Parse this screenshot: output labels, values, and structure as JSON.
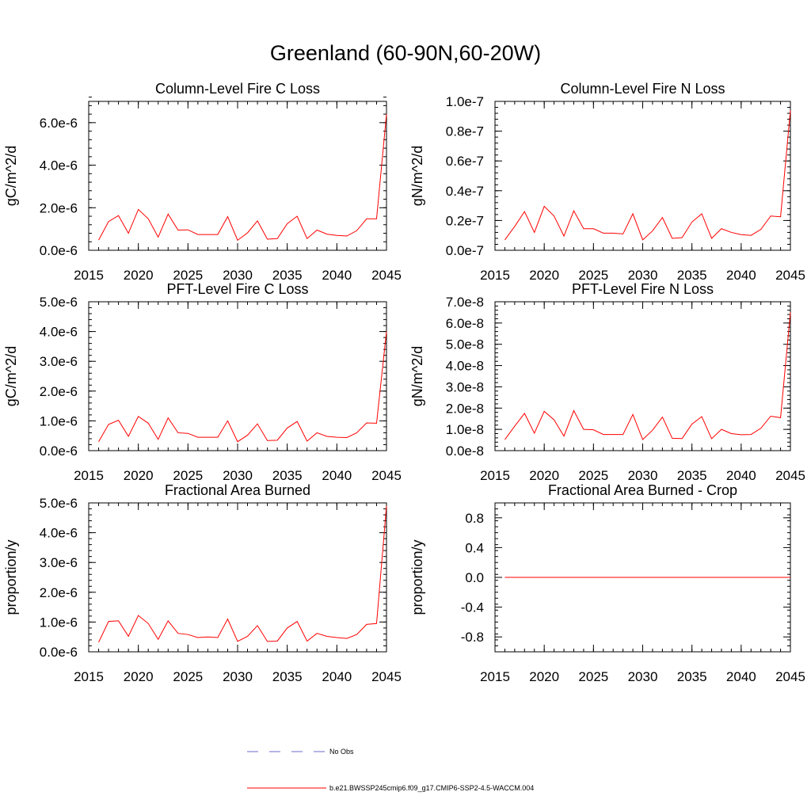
{
  "figure": {
    "title": "Greenland (60-90N,60-20W)"
  },
  "legend": {
    "items": [
      {
        "label": "No Obs",
        "style": "dashed",
        "color": "#6b6bc8"
      },
      {
        "label": "b.e21.BWSSP245cmip6.f09_g17.CMIP6-SSP2-4.5-WACCM.004",
        "style": "solid",
        "color": "#ff0000"
      }
    ]
  },
  "chart_data": [
    {
      "type": "line",
      "title": "Column-Level Fire C Loss",
      "ylabel": "gC/m^2/d",
      "xlim": [
        2015,
        2045
      ],
      "ylim": [
        0,
        7e-06
      ],
      "xticks": [
        2015,
        2020,
        2025,
        2030,
        2035,
        2040,
        2045
      ],
      "xtick_labels": [
        "2015",
        "2020",
        "2025",
        "2030",
        "2035",
        "2040",
        "2045"
      ],
      "yticks": [
        0,
        2e-06,
        4e-06,
        6e-06
      ],
      "ytick_labels": [
        "0.0e-6",
        "2.0e-6",
        "4.0e-6",
        "6.0e-6"
      ],
      "yminor_step": 4e-07,
      "x": [
        2016,
        2017,
        2018,
        2019,
        2020,
        2021,
        2022,
        2023,
        2024,
        2025,
        2026,
        2027,
        2028,
        2029,
        2030,
        2031,
        2032,
        2033,
        2034,
        2035,
        2036,
        2037,
        2038,
        2039,
        2040,
        2041,
        2042,
        2043,
        2044,
        2045
      ],
      "series": [
        {
          "values": [
            4.8e-07,
            1.35e-06,
            1.63e-06,
            8e-07,
            1.92e-06,
            1.48e-06,
            6.2e-07,
            1.7e-06,
            9.5e-07,
            9.6e-07,
            7.4e-07,
            7.4e-07,
            7.4e-07,
            1.58e-06,
            4.7e-07,
            8.2e-07,
            1.38e-06,
            5.2e-07,
            5.5e-07,
            1.25e-06,
            1.6e-06,
            5.5e-07,
            9.5e-07,
            7.6e-07,
            7e-07,
            6.7e-07,
            9.2e-07,
            1.48e-06,
            1.48e-06,
            6.4e-06
          ],
          "color": "#ff0000"
        }
      ]
    },
    {
      "type": "line",
      "title": "Column-Level Fire N Loss",
      "ylabel": "gN/m^2/d",
      "xlim": [
        2015,
        2045
      ],
      "ylim": [
        0,
        1e-07
      ],
      "xticks": [
        2015,
        2020,
        2025,
        2030,
        2035,
        2040,
        2045
      ],
      "xtick_labels": [
        "2015",
        "2020",
        "2025",
        "2030",
        "2035",
        "2040",
        "2045"
      ],
      "yticks": [
        0,
        2e-08,
        4e-08,
        6e-08,
        8e-08,
        1e-07
      ],
      "ytick_labels": [
        "0.0e-7",
        "0.2e-7",
        "0.4e-7",
        "0.6e-7",
        "0.8e-7",
        "1.0e-7"
      ],
      "yminor_step": 4e-09,
      "x": [
        2016,
        2017,
        2018,
        2019,
        2020,
        2021,
        2022,
        2023,
        2024,
        2025,
        2026,
        2027,
        2028,
        2029,
        2030,
        2031,
        2032,
        2033,
        2034,
        2035,
        2036,
        2037,
        2038,
        2039,
        2040,
        2041,
        2042,
        2043,
        2044,
        2045
      ],
      "series": [
        {
          "values": [
            7e-09,
            1.6e-08,
            2.6e-08,
            1.2e-08,
            2.95e-08,
            2.3e-08,
            9.5e-09,
            2.65e-08,
            1.45e-08,
            1.45e-08,
            1.15e-08,
            1.15e-08,
            1.1e-08,
            2.45e-08,
            7e-09,
            1.3e-08,
            2.2e-08,
            8e-09,
            8.5e-09,
            1.9e-08,
            2.45e-08,
            8e-09,
            1.45e-08,
            1.2e-08,
            1.05e-08,
            1e-08,
            1.4e-08,
            2.3e-08,
            2.25e-08,
            9.4e-08
          ],
          "color": "#ff0000"
        }
      ]
    },
    {
      "type": "line",
      "title": "PFT-Level Fire C Loss",
      "ylabel": "gC/m^2/d",
      "xlim": [
        2015,
        2045
      ],
      "ylim": [
        0,
        5e-06
      ],
      "xticks": [
        2015,
        2020,
        2025,
        2030,
        2035,
        2040,
        2045
      ],
      "xtick_labels": [
        "2015",
        "2020",
        "2025",
        "2030",
        "2035",
        "2040",
        "2045"
      ],
      "yticks": [
        0,
        1e-06,
        2e-06,
        3e-06,
        4e-06,
        5e-06
      ],
      "ytick_labels": [
        "0.0e-6",
        "1.0e-6",
        "2.0e-6",
        "3.0e-6",
        "4.0e-6",
        "5.0e-6"
      ],
      "yminor_step": 2e-07,
      "x": [
        2016,
        2017,
        2018,
        2019,
        2020,
        2021,
        2022,
        2023,
        2024,
        2025,
        2026,
        2027,
        2028,
        2029,
        2030,
        2031,
        2032,
        2033,
        2034,
        2035,
        2036,
        2037,
        2038,
        2039,
        2040,
        2041,
        2042,
        2043,
        2044,
        2045
      ],
      "series": [
        {
          "values": [
            3e-07,
            8.8e-07,
            1.02e-06,
            4.8e-07,
            1.15e-06,
            9.2e-07,
            3.8e-07,
            1.1e-06,
            6e-07,
            5.8e-07,
            4.5e-07,
            4.5e-07,
            4.5e-07,
            1e-06,
            3e-07,
            5.2e-07,
            9e-07,
            3.4e-07,
            3.5e-07,
            7.6e-07,
            9.8e-07,
            3.2e-07,
            6e-07,
            4.8e-07,
            4.5e-07,
            4.4e-07,
            6e-07,
            9.3e-07,
            9.2e-07,
            4e-06
          ],
          "color": "#ff0000"
        }
      ]
    },
    {
      "type": "line",
      "title": "PFT-Level Fire N Loss",
      "ylabel": "gN/m^2/d",
      "xlim": [
        2015,
        2045
      ],
      "ylim": [
        0,
        7e-08
      ],
      "xticks": [
        2015,
        2020,
        2025,
        2030,
        2035,
        2040,
        2045
      ],
      "xtick_labels": [
        "2015",
        "2020",
        "2025",
        "2030",
        "2035",
        "2040",
        "2045"
      ],
      "yticks": [
        0,
        1e-08,
        2e-08,
        3e-08,
        4e-08,
        5e-08,
        6e-08,
        7e-08
      ],
      "ytick_labels": [
        "0.0e-8",
        "1.0e-8",
        "2.0e-8",
        "3.0e-8",
        "4.0e-8",
        "5.0e-8",
        "6.0e-8",
        "7.0e-8"
      ],
      "yminor_step": 2e-09,
      "x": [
        2016,
        2017,
        2018,
        2019,
        2020,
        2021,
        2022,
        2023,
        2024,
        2025,
        2026,
        2027,
        2028,
        2029,
        2030,
        2031,
        2032,
        2033,
        2034,
        2035,
        2036,
        2037,
        2038,
        2039,
        2040,
        2041,
        2042,
        2043,
        2044,
        2045
      ],
      "series": [
        {
          "values": [
            5.2e-09,
            1.15e-08,
            1.75e-08,
            8.2e-09,
            1.85e-08,
            1.45e-08,
            6.8e-09,
            1.88e-08,
            1e-08,
            9.8e-09,
            7.6e-09,
            7.6e-09,
            7.6e-09,
            1.7e-08,
            5.2e-09,
            9.6e-09,
            1.58e-08,
            5.8e-09,
            5.7e-09,
            1.25e-08,
            1.6e-08,
            5.6e-09,
            1e-08,
            8e-09,
            7.5e-09,
            7.6e-09,
            1.05e-08,
            1.62e-08,
            1.55e-08,
            6.5e-08
          ],
          "color": "#ff0000"
        }
      ]
    },
    {
      "type": "line",
      "title": "Fractional Area Burned",
      "ylabel": "proportion/y",
      "xlim": [
        2015,
        2045
      ],
      "ylim": [
        0,
        5e-06
      ],
      "xticks": [
        2015,
        2020,
        2025,
        2030,
        2035,
        2040,
        2045
      ],
      "xtick_labels": [
        "2015",
        "2020",
        "2025",
        "2030",
        "2035",
        "2040",
        "2045"
      ],
      "yticks": [
        0,
        1e-06,
        2e-06,
        3e-06,
        4e-06,
        5e-06
      ],
      "ytick_labels": [
        "0.0e-6",
        "1.0e-6",
        "2.0e-6",
        "3.0e-6",
        "4.0e-6",
        "5.0e-6"
      ],
      "yminor_step": 2e-07,
      "x": [
        2016,
        2017,
        2018,
        2019,
        2020,
        2021,
        2022,
        2023,
        2024,
        2025,
        2026,
        2027,
        2028,
        2029,
        2030,
        2031,
        2032,
        2033,
        2034,
        2035,
        2036,
        2037,
        2038,
        2039,
        2040,
        2041,
        2042,
        2043,
        2044,
        2045
      ],
      "series": [
        {
          "values": [
            3.2e-07,
            1.02e-06,
            1.04e-06,
            5.2e-07,
            1.22e-06,
            9.5e-07,
            4.2e-07,
            1.04e-06,
            6.2e-07,
            5.8e-07,
            4.8e-07,
            5e-07,
            4.8e-07,
            1.1e-06,
            3.5e-07,
            5.2e-07,
            8.8e-07,
            3.5e-07,
            3.6e-07,
            8e-07,
            1.02e-06,
            3.6e-07,
            6.2e-07,
            5.2e-07,
            4.8e-07,
            4.5e-07,
            5.8e-07,
            9.2e-07,
            9.5e-07,
            4.9e-06
          ],
          "color": "#ff0000"
        }
      ]
    },
    {
      "type": "line",
      "title": "Fractional Area Burned - Crop",
      "ylabel": "proportion/y",
      "xlim": [
        2015,
        2045
      ],
      "ylim": [
        -1.0,
        1.0
      ],
      "xticks": [
        2015,
        2020,
        2025,
        2030,
        2035,
        2040,
        2045
      ],
      "xtick_labels": [
        "2015",
        "2020",
        "2025",
        "2030",
        "2035",
        "2040",
        "2045"
      ],
      "yticks": [
        -0.8,
        -0.4,
        0.0,
        0.4,
        0.8
      ],
      "ytick_labels": [
        "-0.8",
        "-0.4",
        "0.0",
        "0.4",
        "0.8"
      ],
      "yminor_step": 0.08,
      "x": [
        2016,
        2017,
        2018,
        2019,
        2020,
        2021,
        2022,
        2023,
        2024,
        2025,
        2026,
        2027,
        2028,
        2029,
        2030,
        2031,
        2032,
        2033,
        2034,
        2035,
        2036,
        2037,
        2038,
        2039,
        2040,
        2041,
        2042,
        2043,
        2044,
        2045
      ],
      "series": [
        {
          "values": [
            0,
            0,
            0,
            0,
            0,
            0,
            0,
            0,
            0,
            0,
            0,
            0,
            0,
            0,
            0,
            0,
            0,
            0,
            0,
            0,
            0,
            0,
            0,
            0,
            0,
            0,
            0,
            0,
            0,
            0
          ],
          "color": "#ff0000"
        }
      ]
    }
  ]
}
